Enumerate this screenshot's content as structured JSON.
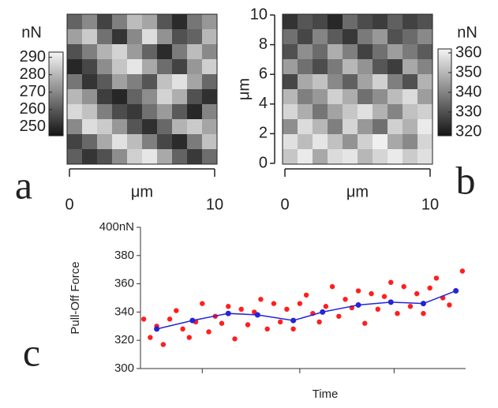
{
  "chart_data": [
    {
      "type": "heatmap",
      "panel_label": "a",
      "xlabel": "μm",
      "xlim": [
        0,
        10
      ],
      "xticks": [
        0,
        10
      ],
      "colorbar_label": "nN",
      "clim": [
        245,
        293
      ],
      "cticks": [
        250,
        260,
        270,
        280,
        290
      ],
      "z": [
        [
          262,
          270,
          255,
          268,
          281,
          276,
          259,
          250,
          266,
          273
        ],
        [
          275,
          284,
          265,
          252,
          270,
          288,
          272,
          258,
          262,
          280
        ],
        [
          258,
          268,
          279,
          286,
          274,
          262,
          250,
          267,
          281,
          270
        ],
        [
          249,
          256,
          271,
          283,
          290,
          277,
          264,
          255,
          273,
          285
        ],
        [
          266,
          252,
          260,
          275,
          268,
          259,
          282,
          289,
          276,
          263
        ],
        [
          280,
          272,
          254,
          249,
          262,
          271,
          286,
          278,
          258,
          251
        ],
        [
          287,
          282,
          268,
          257,
          253,
          265,
          274,
          260,
          249,
          269
        ],
        [
          270,
          288,
          284,
          273,
          259,
          251,
          263,
          279,
          284,
          276
        ],
        [
          255,
          263,
          277,
          289,
          281,
          268,
          256,
          250,
          267,
          282
        ],
        [
          261,
          252,
          258,
          271,
          285,
          290,
          277,
          262,
          253,
          264
        ]
      ]
    },
    {
      "type": "heatmap",
      "panel_label": "b",
      "xlabel": "μm",
      "ylabel": "μm",
      "xlim": [
        0,
        10
      ],
      "xticks": [
        0,
        10
      ],
      "ylim": [
        0,
        10
      ],
      "yticks": [
        0,
        2,
        4,
        6,
        8,
        10
      ],
      "colorbar_label": "nN",
      "clim": [
        318,
        362
      ],
      "cticks": [
        320,
        330,
        340,
        350,
        360
      ],
      "z": [
        [
          324,
          331,
          328,
          322,
          335,
          329,
          326,
          333,
          327,
          330
        ],
        [
          336,
          328,
          340,
          332,
          325,
          338,
          344,
          330,
          335,
          341
        ],
        [
          330,
          342,
          335,
          348,
          339,
          327,
          336,
          345,
          338,
          332
        ],
        [
          345,
          336,
          329,
          338,
          350,
          343,
          331,
          326,
          347,
          340
        ],
        [
          328,
          347,
          352,
          341,
          333,
          346,
          355,
          339,
          330,
          349
        ],
        [
          350,
          339,
          344,
          355,
          348,
          336,
          342,
          351,
          357,
          345
        ],
        [
          356,
          348,
          337,
          346,
          353,
          358,
          349,
          340,
          352,
          355
        ],
        [
          342,
          357,
          350,
          339,
          356,
          344,
          336,
          355,
          349,
          360
        ],
        [
          358,
          351,
          359,
          352,
          343,
          355,
          361,
          347,
          341,
          356
        ],
        [
          353,
          360,
          347,
          357,
          359,
          350,
          356,
          360,
          354,
          358
        ]
      ]
    },
    {
      "type": "scatter",
      "panel_label": "c",
      "xlabel": "Time",
      "ylabel": "Pull-Off Force",
      "xlim": [
        0,
        100
      ],
      "xticks": [
        19,
        49,
        78
      ],
      "ylim": [
        300,
        400
      ],
      "yticks": [
        300,
        320,
        340,
        360,
        380,
        {
          "value": 400,
          "label": "400nN"
        }
      ],
      "series": [
        {
          "color": "#ff1e1e",
          "x": [
            1,
            3,
            5,
            7,
            9,
            11,
            13,
            15,
            17,
            19,
            21,
            23,
            25,
            27,
            29,
            31,
            33,
            35,
            37,
            39,
            41,
            43,
            45,
            47,
            49,
            51,
            53,
            55,
            57,
            59,
            61,
            63,
            65,
            67,
            69,
            71,
            73,
            75,
            77,
            79,
            81,
            83,
            85,
            87,
            89,
            91,
            93,
            95,
            97,
            99
          ],
          "values": [
            335,
            322,
            330,
            317,
            335,
            341,
            328,
            322,
            333,
            346,
            326,
            337,
            332,
            344,
            321,
            342,
            331,
            340,
            349,
            328,
            346,
            333,
            342,
            328,
            346,
            352,
            339,
            333,
            344,
            358,
            337,
            349,
            343,
            355,
            332,
            353,
            342,
            351,
            361,
            339,
            358,
            344,
            353,
            339,
            357,
            364,
            350,
            345,
            355,
            369
          ]
        },
        {
          "color": "#2424d8",
          "line": true,
          "x": [
            5,
            16,
            27,
            36,
            47,
            56,
            67,
            77,
            87,
            97
          ],
          "values": [
            328,
            334,
            339,
            338,
            334,
            340,
            345,
            347,
            346,
            355
          ]
        }
      ]
    }
  ]
}
